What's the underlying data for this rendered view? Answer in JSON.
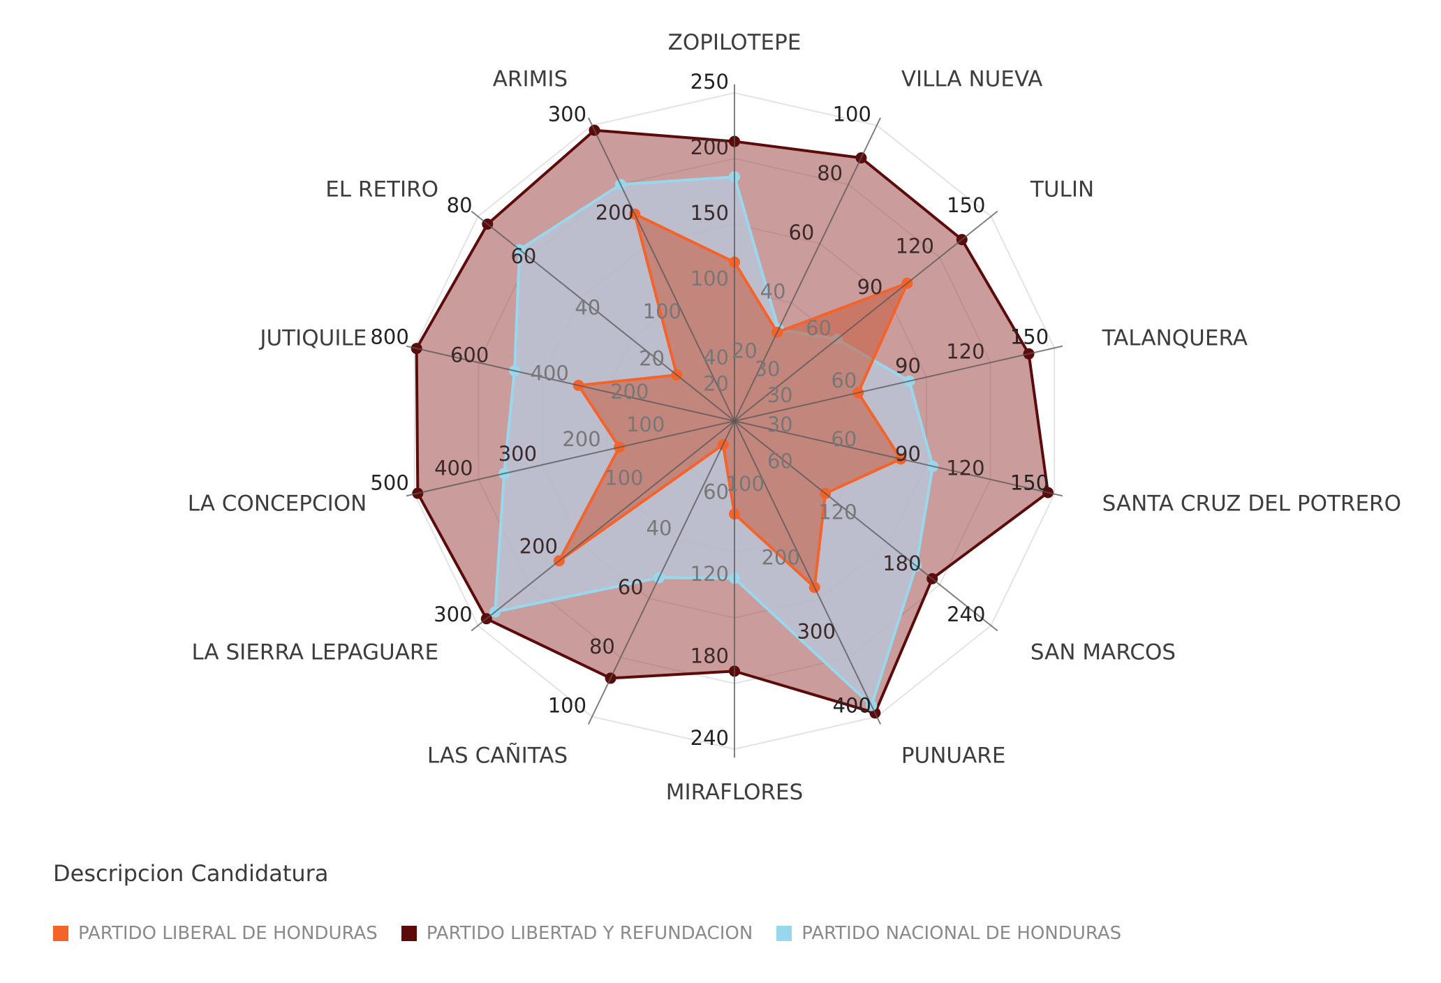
{
  "chart_data": {
    "type": "radar",
    "categories": [
      "ZOPILOTEPE",
      "VILLA NUEVA",
      "TULIN",
      "TALANQUERA",
      "SANTA CRUZ DEL POTRERO",
      "SAN MARCOS",
      "PUNUARE",
      "MIRAFLORES",
      "LAS CAÑITAS",
      "LA SIERRA LEPAGUARE",
      "LA CONCEPCION",
      "JUTIQUILE",
      "EL RETIRO",
      "ARIMIS"
    ],
    "axes": [
      {
        "name": "ZOPILOTEPE",
        "min": 0,
        "max": 250,
        "ticks": [
          {
            "v": 20,
            "t": "20"
          },
          {
            "v": 40,
            "t": "40"
          },
          {
            "v": 100,
            "t": "100"
          },
          {
            "v": 150,
            "t": "150"
          },
          {
            "v": 200,
            "t": "200"
          },
          {
            "v": 250,
            "t": "250"
          }
        ]
      },
      {
        "name": "VILLA NUEVA",
        "min": 0,
        "max": 100,
        "ticks": [
          {
            "v": 20,
            "t": "20"
          },
          {
            "v": 40,
            "t": "40"
          },
          {
            "v": 60,
            "t": "60"
          },
          {
            "v": 80,
            "t": "80"
          },
          {
            "v": 100,
            "t": "100"
          }
        ]
      },
      {
        "name": "TULIN",
        "min": 0,
        "max": 150,
        "ticks": [
          {
            "v": 30,
            "t": "30"
          },
          {
            "v": 60,
            "t": "60"
          },
          {
            "v": 90,
            "t": "90"
          },
          {
            "v": 120,
            "t": "120"
          },
          {
            "v": 150,
            "t": "150"
          }
        ]
      },
      {
        "name": "TALANQUERA",
        "min": 0,
        "max": 150,
        "ticks": [
          {
            "v": 30,
            "t": "30"
          },
          {
            "v": 60,
            "t": "60"
          },
          {
            "v": 90,
            "t": "90"
          },
          {
            "v": 120,
            "t": "120"
          },
          {
            "v": 150,
            "t": "150"
          }
        ]
      },
      {
        "name": "SANTA CRUZ DEL POTRERO",
        "min": 0,
        "max": 150,
        "ticks": [
          {
            "v": 30,
            "t": "30"
          },
          {
            "v": 60,
            "t": "60"
          },
          {
            "v": 90,
            "t": "90"
          },
          {
            "v": 120,
            "t": "120"
          },
          {
            "v": 150,
            "t": "150"
          }
        ]
      },
      {
        "name": "SAN MARCOS",
        "min": 0,
        "max": 240,
        "ticks": [
          {
            "v": 60,
            "t": "60"
          },
          {
            "v": 120,
            "t": "120"
          },
          {
            "v": 180,
            "t": "180"
          },
          {
            "v": 240,
            "t": "240"
          }
        ]
      },
      {
        "name": "PUNUARE",
        "min": 0,
        "max": 400,
        "ticks": [
          {
            "v": 100,
            "t": "100"
          },
          {
            "v": 200,
            "t": "200"
          },
          {
            "v": 300,
            "t": "300"
          },
          {
            "v": 400,
            "t": "400"
          }
        ]
      },
      {
        "name": "MIRAFLORES",
        "min": 0,
        "max": 240,
        "ticks": [
          {
            "v": 60,
            "t": "60"
          },
          {
            "v": 120,
            "t": "120"
          },
          {
            "v": 180,
            "t": "180"
          },
          {
            "v": 240,
            "t": "240"
          }
        ]
      },
      {
        "name": "LAS CAÑITAS",
        "min": 0,
        "max": 100,
        "ticks": [
          {
            "v": 40,
            "t": "40"
          },
          {
            "v": 60,
            "t": "60"
          },
          {
            "v": 80,
            "t": "80"
          },
          {
            "v": 100,
            "t": "100"
          }
        ]
      },
      {
        "name": "LA SIERRA LEPAGUARE",
        "min": 0,
        "max": 300,
        "ticks": [
          {
            "v": 100,
            "t": "100"
          },
          {
            "v": 200,
            "t": "200"
          },
          {
            "v": 300,
            "t": "300"
          }
        ]
      },
      {
        "name": "LA CONCEPCION",
        "min": 0,
        "max": 500,
        "ticks": [
          {
            "v": 100,
            "t": "100"
          },
          {
            "v": 200,
            "t": "200"
          },
          {
            "v": 300,
            "t": "300"
          },
          {
            "v": 400,
            "t": "400"
          },
          {
            "v": 500,
            "t": "500"
          }
        ]
      },
      {
        "name": "JUTIQUILE",
        "min": 0,
        "max": 800,
        "ticks": [
          {
            "v": 200,
            "t": "200"
          },
          {
            "v": 400,
            "t": "400"
          },
          {
            "v": 600,
            "t": "600"
          },
          {
            "v": 800,
            "t": "800"
          }
        ]
      },
      {
        "name": "EL RETIRO",
        "min": 0,
        "max": 80,
        "ticks": [
          {
            "v": 20,
            "t": "20"
          },
          {
            "v": 40,
            "t": "40"
          },
          {
            "v": 60,
            "t": "60"
          },
          {
            "v": 80,
            "t": "80"
          }
        ]
      },
      {
        "name": "ARIMIS",
        "min": 0,
        "max": 300,
        "ticks": [
          {
            "v": 100,
            "t": "100"
          },
          {
            "v": 200,
            "t": "200"
          },
          {
            "v": 300,
            "t": "300"
          }
        ]
      }
    ],
    "series": [
      {
        "name": "PARTIDO LIBERTAD Y REFUNDACION",
        "color": "#5c0b0b",
        "fill": "#a55454",
        "fill_opacity": 0.58,
        "values": [
          213,
          89,
          133,
          138,
          147,
          185,
          395,
          183,
          87,
          290,
          495,
          795,
          77,
          295
        ]
      },
      {
        "name": "PARTIDO NACIONAL DE HONDURAS",
        "color": "#99d8ec",
        "fill": "#b8c4d8",
        "fill_opacity": 0.82,
        "values": [
          186,
          31,
          60,
          82,
          93,
          170,
          385,
          115,
          53,
          280,
          360,
          550,
          67,
          240
        ]
      },
      {
        "name": "PARTIDO LIBERAL DE HONDURAS",
        "color": "#f4632a",
        "fill": "#c85a3a",
        "fill_opacity": 0.55,
        "values": [
          121,
          30,
          101,
          58,
          78,
          85,
          225,
          68,
          8,
          205,
          180,
          390,
          18,
          210
        ]
      }
    ],
    "legend_title": "Descripcion Candidatura",
    "legend": [
      {
        "label": "PARTIDO LIBERAL DE HONDURAS",
        "color": "#f4632a"
      },
      {
        "label": "PARTIDO LIBERTAD Y REFUNDACION",
        "color": "#5c0b0b"
      },
      {
        "label": "PARTIDO NACIONAL DE HONDURAS",
        "color": "#99d8ec"
      }
    ],
    "grid": true
  }
}
